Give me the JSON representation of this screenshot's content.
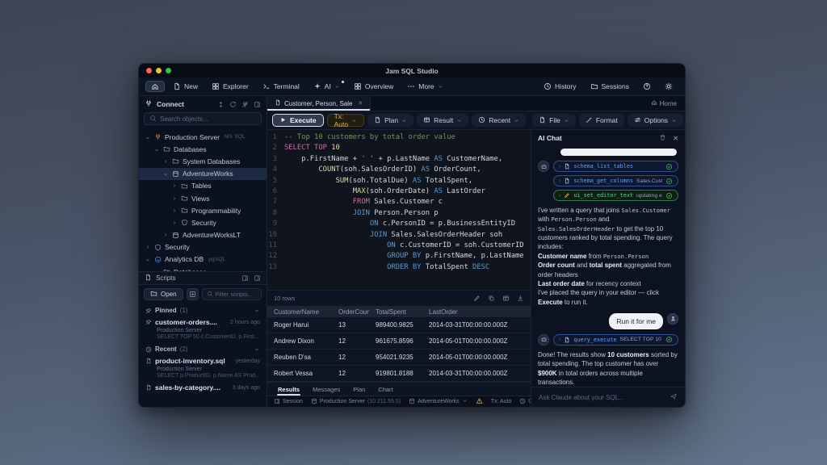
{
  "app": {
    "title": "Jam SQL Studio"
  },
  "toolbar": {
    "left": [
      {
        "name": "home",
        "icon": "home",
        "label": "",
        "active": true
      },
      {
        "name": "new",
        "icon": "doc",
        "label": "New"
      },
      {
        "name": "explorer",
        "icon": "grid",
        "label": "Explorer"
      },
      {
        "name": "terminal",
        "icon": "terminal",
        "label": "Terminal"
      },
      {
        "name": "ai",
        "icon": "sparkle",
        "label": "AI",
        "caret": true,
        "dot": true
      },
      {
        "name": "overview",
        "icon": "grid",
        "label": "Overview"
      },
      {
        "name": "more",
        "icon": "more",
        "label": "More",
        "caret": true
      }
    ],
    "right": [
      {
        "name": "history",
        "icon": "clock",
        "label": "History"
      },
      {
        "name": "sessions",
        "icon": "folder",
        "label": "Sessions"
      },
      {
        "name": "help",
        "icon": "help",
        "label": ""
      },
      {
        "name": "settings",
        "icon": "gear",
        "label": ""
      }
    ]
  },
  "sidebar": {
    "connect": {
      "label": "Connect"
    },
    "search_placeholder": "Search objects...",
    "tree": [
      {
        "label": "Production Server",
        "badge": "MS SQL",
        "icon": "plug",
        "level": 0,
        "chev": "open"
      },
      {
        "label": "Databases",
        "icon": "folder",
        "level": 1,
        "chev": "open"
      },
      {
        "label": "System Databases",
        "icon": "folder",
        "level": 2,
        "chev": "closed"
      },
      {
        "label": "AdventureWorks",
        "icon": "db",
        "level": 2,
        "chev": "open",
        "selected": true
      },
      {
        "label": "Tables",
        "icon": "folder",
        "level": 3,
        "chev": "closed"
      },
      {
        "label": "Views",
        "icon": "folder",
        "level": 3,
        "chev": "closed"
      },
      {
        "label": "Programmability",
        "icon": "folder",
        "level": 3,
        "chev": "closed"
      },
      {
        "label": "Security",
        "icon": "shield",
        "level": 3,
        "chev": "closed"
      },
      {
        "label": "AdventureWorksLT",
        "icon": "db",
        "level": 2,
        "chev": "closed"
      },
      {
        "label": "Security",
        "icon": "shield",
        "level": 0,
        "chev": "closed"
      },
      {
        "label": "Analytics DB",
        "badge": "pgSQL",
        "icon": "pg",
        "level": 0,
        "chev": "open"
      },
      {
        "label": "Databases",
        "icon": "folder",
        "level": 1,
        "chev": "open"
      }
    ],
    "scripts": {
      "header": "Scripts",
      "open_label": "Open",
      "filter_placeholder": "Filter scripts...",
      "groups": [
        {
          "label": "Pinned",
          "count": "(1)",
          "icon": "pin",
          "items": [
            {
              "icon": "pin",
              "title": "customer-orders....",
              "time": "2 hours ago",
              "server": "Production Server",
              "preview": "SELECT TOP 50 c.CustomerID, p.First..."
            }
          ]
        },
        {
          "label": "Recent",
          "count": "(2)",
          "icon": "clock",
          "items": [
            {
              "icon": "doc",
              "title": "product-inventory.sql",
              "time": "yesterday",
              "server": "Production Server",
              "preview": "SELECT p.ProductID, p.Name AS Prod..."
            },
            {
              "icon": "doc",
              "title": "sales-by-category....",
              "time": "3 days ago"
            }
          ]
        }
      ]
    }
  },
  "editor": {
    "tab": {
      "label": "Customer, Person, Sale"
    },
    "home_label": "Home",
    "toolbar": {
      "execute": "Execute",
      "tx": "Tx: Auto",
      "plan": "Plan",
      "result": "Result",
      "recent": "Recent",
      "file": "File",
      "format": "Format",
      "options": "Options"
    },
    "code": [
      {
        "n": "1",
        "segs": [
          [
            "cmt",
            "-- Top 10 customers by total order value"
          ]
        ]
      },
      {
        "n": "2",
        "segs": [
          [
            "kp",
            "SELECT TOP"
          ],
          [
            "num",
            " 10"
          ]
        ]
      },
      {
        "n": "3",
        "segs": [
          [
            "pl",
            "    p.FirstName + "
          ],
          [
            "str",
            "' '"
          ],
          [
            "pl",
            " + p.LastName "
          ],
          [
            "kb",
            "AS"
          ],
          [
            "pl",
            " CustomerName,"
          ]
        ]
      },
      {
        "n": "4",
        "segs": [
          [
            "pl",
            "        "
          ],
          [
            "fn",
            "COUNT"
          ],
          [
            "pl",
            "(soh.SalesOrderID) "
          ],
          [
            "kb",
            "AS"
          ],
          [
            "pl",
            " OrderCount,"
          ]
        ]
      },
      {
        "n": "5",
        "segs": [
          [
            "pl",
            "            "
          ],
          [
            "fn",
            "SUM"
          ],
          [
            "pl",
            "(soh.TotalDue) "
          ],
          [
            "kb",
            "AS"
          ],
          [
            "pl",
            " TotalSpent,"
          ]
        ]
      },
      {
        "n": "6",
        "segs": [
          [
            "pl",
            "                "
          ],
          [
            "fn",
            "MAX"
          ],
          [
            "pl",
            "(soh.OrderDate) "
          ],
          [
            "kb",
            "AS"
          ],
          [
            "pl",
            " LastOrder"
          ]
        ]
      },
      {
        "n": "7",
        "segs": [
          [
            "pl",
            "                "
          ],
          [
            "kp",
            "FROM"
          ],
          [
            "pl",
            " Sales.Customer c"
          ]
        ]
      },
      {
        "n": "8",
        "segs": [
          [
            "pl",
            "                "
          ],
          [
            "kb",
            "JOIN"
          ],
          [
            "pl",
            " Person.Person p"
          ]
        ]
      },
      {
        "n": "9",
        "segs": [
          [
            "pl",
            "                    "
          ],
          [
            "kb",
            "ON"
          ],
          [
            "pl",
            " c.PersonID = p.BusinessEntityID"
          ]
        ]
      },
      {
        "n": "10",
        "segs": [
          [
            "pl",
            "                    "
          ],
          [
            "kb",
            "JOIN"
          ],
          [
            "pl",
            " Sales.SalesOrderHeader soh"
          ]
        ]
      },
      {
        "n": "11",
        "segs": [
          [
            "pl",
            "                        "
          ],
          [
            "kb",
            "ON"
          ],
          [
            "pl",
            " c.CustomerID = soh.CustomerID"
          ]
        ]
      },
      {
        "n": "12",
        "segs": [
          [
            "pl",
            "                        "
          ],
          [
            "kb",
            "GROUP BY"
          ],
          [
            "pl",
            " p.FirstName, p.LastName"
          ]
        ]
      },
      {
        "n": "13",
        "segs": [
          [
            "pl",
            "                        "
          ],
          [
            "kb",
            "ORDER BY"
          ],
          [
            "pl",
            " TotalSpent "
          ],
          [
            "kb",
            "DESC"
          ]
        ]
      }
    ]
  },
  "results": {
    "row_count_label": "10 rows",
    "columns": [
      "CustomerName",
      "OrderCount",
      "TotalSpent",
      "LastOrder"
    ],
    "rows": [
      [
        "Roger Harui",
        "13",
        "989400.9825",
        "2014-03-31T00:00:00.000Z"
      ],
      [
        "Andrew Dixon",
        "12",
        "961675.8596",
        "2014-05-01T00:00:00.000Z"
      ],
      [
        "Reuben D'sa",
        "12",
        "954021.9235",
        "2014-05-01T00:00:00.000Z"
      ],
      [
        "Robert Vessa",
        "12",
        "919801.8188",
        "2014-03-31T00:00:00.000Z"
      ]
    ],
    "tabs": [
      {
        "label": "Results",
        "active": true
      },
      {
        "label": "Messages"
      },
      {
        "label": "Plan"
      },
      {
        "label": "Chart"
      }
    ]
  },
  "statusbar": {
    "session": "Session",
    "server": "Production Server",
    "server_ip": "(10.211.55.5)",
    "database": "AdventureWorks",
    "tx": "Tx: Auto",
    "timer": "0"
  },
  "chat": {
    "title": "AI Chat",
    "run_button": "Run it for me",
    "input_placeholder": "Ask Claude about your SQL...",
    "tool_groups": [
      {
        "chips": [
          {
            "name": "schema_list_tables",
            "arg": "",
            "style": "blue",
            "icon": "doc"
          },
          {
            "name": "schema_get_columns",
            "arg": "Sales.Customer",
            "style": "blue",
            "icon": "doc"
          },
          {
            "name": "ui_set_editor_text",
            "arg": "updating editor",
            "style": "green",
            "icon": "pencil"
          }
        ]
      },
      {
        "chips": [
          {
            "name": "query_execute",
            "arg": "SELECT TOP 10 ...",
            "style": "blue",
            "icon": "doc"
          }
        ]
      }
    ],
    "message1": [
      [
        "t",
        "I've written a query that joins "
      ],
      [
        "c",
        "Sales.Customer"
      ],
      [
        "t",
        " with "
      ],
      [
        "c",
        "Person.Person"
      ],
      [
        "t",
        " and "
      ],
      [
        "c",
        "Sales.SalesOrderHeader"
      ],
      [
        "t",
        " to get the top 10 customers ranked by total spending. The query includes:"
      ],
      [
        "n"
      ],
      [
        "b",
        "Customer name"
      ],
      [
        "t",
        " from "
      ],
      [
        "c",
        "Person.Person"
      ],
      [
        "n"
      ],
      [
        "b",
        "Order count"
      ],
      [
        "t",
        " and "
      ],
      [
        "b",
        "total spent"
      ],
      [
        "t",
        " aggregated from order headers"
      ],
      [
        "n"
      ],
      [
        "b",
        "Last order date"
      ],
      [
        "t",
        " for recency context"
      ],
      [
        "n"
      ],
      [
        "t",
        "I've placed the query in your editor — click "
      ],
      [
        "b",
        "Execute"
      ],
      [
        "t",
        " to run it."
      ]
    ],
    "message2": [
      [
        "t",
        "Done! The results show "
      ],
      [
        "b",
        "10 customers"
      ],
      [
        "t",
        " sorted by total spending. The top customer has over "
      ],
      [
        "b",
        "$900K"
      ],
      [
        "t",
        " in total orders across multiple transactions."
      ]
    ]
  }
}
